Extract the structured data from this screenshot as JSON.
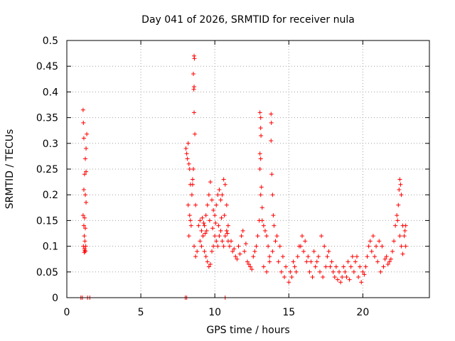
{
  "chart_data": {
    "type": "scatter",
    "title": "Day 041 of 2026, SRMTID for receiver nula",
    "xlabel": "GPS time / hours",
    "ylabel": "SRMTID / TECUs",
    "xlim": [
      0,
      24.5
    ],
    "ylim": [
      0,
      0.5
    ],
    "xticks": [
      0,
      5,
      10,
      15,
      20
    ],
    "yticks": [
      0,
      0.05,
      0.1,
      0.15,
      0.2,
      0.25,
      0.3,
      0.35,
      0.4,
      0.45,
      0.5
    ],
    "xtick_labels": [
      "0",
      "5",
      "10",
      "15",
      "20"
    ],
    "ytick_labels": [
      "0",
      "0.05",
      "0.1",
      "0.15",
      "0.2",
      "0.25",
      "0.3",
      "0.35",
      "0.4",
      "0.45",
      "0.5"
    ],
    "grid": true,
    "marker": "+",
    "series": [
      {
        "name": "SRMTID",
        "color": "#ff0000",
        "points": [
          [
            0.95,
            0.0
          ],
          [
            1.05,
            0.0
          ],
          [
            1.4,
            0.0
          ],
          [
            1.55,
            0.0
          ],
          [
            1.1,
            0.365
          ],
          [
            1.12,
            0.34
          ],
          [
            1.15,
            0.31
          ],
          [
            1.35,
            0.318
          ],
          [
            1.3,
            0.29
          ],
          [
            1.25,
            0.27
          ],
          [
            1.2,
            0.24
          ],
          [
            1.3,
            0.245
          ],
          [
            1.15,
            0.21
          ],
          [
            1.25,
            0.2
          ],
          [
            1.3,
            0.185
          ],
          [
            1.1,
            0.16
          ],
          [
            1.2,
            0.155
          ],
          [
            1.15,
            0.14
          ],
          [
            1.25,
            0.135
          ],
          [
            1.18,
            0.12
          ],
          [
            1.22,
            0.11
          ],
          [
            1.12,
            0.1
          ],
          [
            1.2,
            0.095
          ],
          [
            1.25,
            0.09
          ],
          [
            1.18,
            0.088
          ],
          [
            1.22,
            0.092
          ],
          [
            1.28,
            0.1
          ],
          [
            8.0,
            0.0
          ],
          [
            8.1,
            0.0
          ],
          [
            10.7,
            0.0
          ],
          [
            8.05,
            0.29
          ],
          [
            8.1,
            0.28
          ],
          [
            8.15,
            0.27
          ],
          [
            8.2,
            0.3
          ],
          [
            8.25,
            0.26
          ],
          [
            8.3,
            0.25
          ],
          [
            8.35,
            0.22
          ],
          [
            8.2,
            0.18
          ],
          [
            8.3,
            0.16
          ],
          [
            8.4,
            0.14
          ],
          [
            8.25,
            0.12
          ],
          [
            8.35,
            0.15
          ],
          [
            8.45,
            0.2
          ],
          [
            8.5,
            0.23
          ],
          [
            8.6,
            0.47
          ],
          [
            8.62,
            0.465
          ],
          [
            8.55,
            0.435
          ],
          [
            8.6,
            0.41
          ],
          [
            8.58,
            0.405
          ],
          [
            8.6,
            0.36
          ],
          [
            8.65,
            0.318
          ],
          [
            8.5,
            0.22
          ],
          [
            8.55,
            0.25
          ],
          [
            8.7,
            0.18
          ],
          [
            8.6,
            0.1
          ],
          [
            8.7,
            0.08
          ],
          [
            8.8,
            0.09
          ],
          [
            8.9,
            0.14
          ],
          [
            9.0,
            0.15
          ],
          [
            9.1,
            0.13
          ],
          [
            9.2,
            0.12
          ],
          [
            9.3,
            0.14
          ],
          [
            9.4,
            0.16
          ],
          [
            9.5,
            0.18
          ],
          [
            9.6,
            0.2
          ],
          [
            9.7,
            0.225
          ],
          [
            9.8,
            0.19
          ],
          [
            9.9,
            0.17
          ],
          [
            10.0,
            0.16
          ],
          [
            10.1,
            0.18
          ],
          [
            10.2,
            0.2
          ],
          [
            10.3,
            0.21
          ],
          [
            10.4,
            0.19
          ],
          [
            10.5,
            0.2
          ],
          [
            10.6,
            0.23
          ],
          [
            10.7,
            0.22
          ],
          [
            10.8,
            0.18
          ],
          [
            10.9,
            0.14
          ],
          [
            9.0,
            0.11
          ],
          [
            9.1,
            0.1
          ],
          [
            9.2,
            0.12
          ],
          [
            9.3,
            0.09
          ],
          [
            9.4,
            0.08
          ],
          [
            9.5,
            0.07
          ],
          [
            9.6,
            0.06
          ],
          [
            9.7,
            0.065
          ],
          [
            9.8,
            0.09
          ],
          [
            9.9,
            0.1
          ],
          [
            10.0,
            0.12
          ],
          [
            10.1,
            0.11
          ],
          [
            10.2,
            0.1
          ],
          [
            10.3,
            0.12
          ],
          [
            10.4,
            0.13
          ],
          [
            10.5,
            0.11
          ],
          [
            10.6,
            0.1
          ],
          [
            10.7,
            0.12
          ],
          [
            10.8,
            0.13
          ],
          [
            10.9,
            0.11
          ],
          [
            9.25,
            0.145
          ],
          [
            9.45,
            0.13
          ],
          [
            9.65,
            0.15
          ],
          [
            9.85,
            0.135
          ],
          [
            10.05,
            0.145
          ],
          [
            10.25,
            0.14
          ],
          [
            10.45,
            0.155
          ],
          [
            10.65,
            0.16
          ],
          [
            10.85,
            0.125
          ],
          [
            9.15,
            0.155
          ],
          [
            9.35,
            0.125
          ],
          [
            11.0,
            0.1
          ],
          [
            11.2,
            0.09
          ],
          [
            11.4,
            0.08
          ],
          [
            11.6,
            0.1
          ],
          [
            11.8,
            0.12
          ],
          [
            12.0,
            0.09
          ],
          [
            12.2,
            0.07
          ],
          [
            12.4,
            0.06
          ],
          [
            12.6,
            0.08
          ],
          [
            12.8,
            0.1
          ],
          [
            11.1,
            0.11
          ],
          [
            11.3,
            0.095
          ],
          [
            11.5,
            0.075
          ],
          [
            11.7,
            0.085
          ],
          [
            11.9,
            0.13
          ],
          [
            12.1,
            0.105
          ],
          [
            12.3,
            0.065
          ],
          [
            12.5,
            0.055
          ],
          [
            12.7,
            0.09
          ],
          [
            12.9,
            0.12
          ],
          [
            13.0,
            0.15
          ],
          [
            13.05,
            0.36
          ],
          [
            13.1,
            0.35
          ],
          [
            13.1,
            0.33
          ],
          [
            13.12,
            0.315
          ],
          [
            13.05,
            0.28
          ],
          [
            13.1,
            0.27
          ],
          [
            13.05,
            0.25
          ],
          [
            13.15,
            0.215
          ],
          [
            13.1,
            0.2
          ],
          [
            13.2,
            0.175
          ],
          [
            13.2,
            0.15
          ],
          [
            13.3,
            0.14
          ],
          [
            13.4,
            0.13
          ],
          [
            13.5,
            0.12
          ],
          [
            13.6,
            0.1
          ],
          [
            13.7,
            0.08
          ],
          [
            13.8,
            0.357
          ],
          [
            13.82,
            0.34
          ],
          [
            13.8,
            0.305
          ],
          [
            13.85,
            0.24
          ],
          [
            13.9,
            0.2
          ],
          [
            13.95,
            0.16
          ],
          [
            14.0,
            0.14
          ],
          [
            14.2,
            0.12
          ],
          [
            14.4,
            0.1
          ],
          [
            14.6,
            0.08
          ],
          [
            14.8,
            0.06
          ],
          [
            13.3,
            0.06
          ],
          [
            13.5,
            0.05
          ],
          [
            13.7,
            0.07
          ],
          [
            13.9,
            0.09
          ],
          [
            14.1,
            0.11
          ],
          [
            14.3,
            0.07
          ],
          [
            14.5,
            0.05
          ],
          [
            14.7,
            0.04
          ],
          [
            15.0,
            0.03
          ],
          [
            15.2,
            0.04
          ],
          [
            15.4,
            0.06
          ],
          [
            15.6,
            0.08
          ],
          [
            15.8,
            0.1
          ],
          [
            16.0,
            0.09
          ],
          [
            16.2,
            0.07
          ],
          [
            16.4,
            0.05
          ],
          [
            16.6,
            0.04
          ],
          [
            16.8,
            0.06
          ],
          [
            17.0,
            0.08
          ],
          [
            17.2,
            0.12
          ],
          [
            17.4,
            0.1
          ],
          [
            17.6,
            0.08
          ],
          [
            17.8,
            0.06
          ],
          [
            18.0,
            0.05
          ],
          [
            15.1,
            0.05
          ],
          [
            15.3,
            0.07
          ],
          [
            15.5,
            0.05
          ],
          [
            15.7,
            0.1
          ],
          [
            15.9,
            0.12
          ],
          [
            16.1,
            0.11
          ],
          [
            16.3,
            0.08
          ],
          [
            16.5,
            0.07
          ],
          [
            16.7,
            0.09
          ],
          [
            16.9,
            0.07
          ],
          [
            17.1,
            0.05
          ],
          [
            17.3,
            0.04
          ],
          [
            17.5,
            0.06
          ],
          [
            17.7,
            0.09
          ],
          [
            17.9,
            0.07
          ],
          [
            18.1,
            0.04
          ],
          [
            18.2,
            0.06
          ],
          [
            18.4,
            0.05
          ],
          [
            18.6,
            0.04
          ],
          [
            18.8,
            0.05
          ],
          [
            19.0,
            0.07
          ],
          [
            19.2,
            0.06
          ],
          [
            19.4,
            0.05
          ],
          [
            19.6,
            0.08
          ],
          [
            19.8,
            0.06
          ],
          [
            20.0,
            0.05
          ],
          [
            18.3,
            0.035
          ],
          [
            18.5,
            0.03
          ],
          [
            18.7,
            0.06
          ],
          [
            18.9,
            0.04
          ],
          [
            19.1,
            0.035
          ],
          [
            19.3,
            0.08
          ],
          [
            19.5,
            0.07
          ],
          [
            19.7,
            0.04
          ],
          [
            19.9,
            0.03
          ],
          [
            20.1,
            0.045
          ],
          [
            20.2,
            0.06
          ],
          [
            20.3,
            0.08
          ],
          [
            20.4,
            0.1
          ],
          [
            20.5,
            0.11
          ],
          [
            20.6,
            0.09
          ],
          [
            20.8,
            0.08
          ],
          [
            21.0,
            0.07
          ],
          [
            21.2,
            0.05
          ],
          [
            21.4,
            0.06
          ],
          [
            21.6,
            0.08
          ],
          [
            21.8,
            0.07
          ],
          [
            22.0,
            0.09
          ],
          [
            20.7,
            0.12
          ],
          [
            20.9,
            0.1
          ],
          [
            21.1,
            0.11
          ],
          [
            21.3,
            0.1
          ],
          [
            21.5,
            0.075
          ],
          [
            21.7,
            0.065
          ],
          [
            21.9,
            0.075
          ],
          [
            22.1,
            0.11
          ],
          [
            22.2,
            0.14
          ],
          [
            22.3,
            0.16
          ],
          [
            22.35,
            0.15
          ],
          [
            22.4,
            0.18
          ],
          [
            22.45,
            0.21
          ],
          [
            22.5,
            0.23
          ],
          [
            22.55,
            0.22
          ],
          [
            22.6,
            0.2
          ],
          [
            22.7,
            0.14
          ],
          [
            22.8,
            0.12
          ],
          [
            22.9,
            0.1
          ],
          [
            22.6,
            0.1
          ],
          [
            22.5,
            0.12
          ],
          [
            22.7,
            0.085
          ],
          [
            22.85,
            0.13
          ],
          [
            22.9,
            0.14
          ]
        ]
      }
    ]
  }
}
